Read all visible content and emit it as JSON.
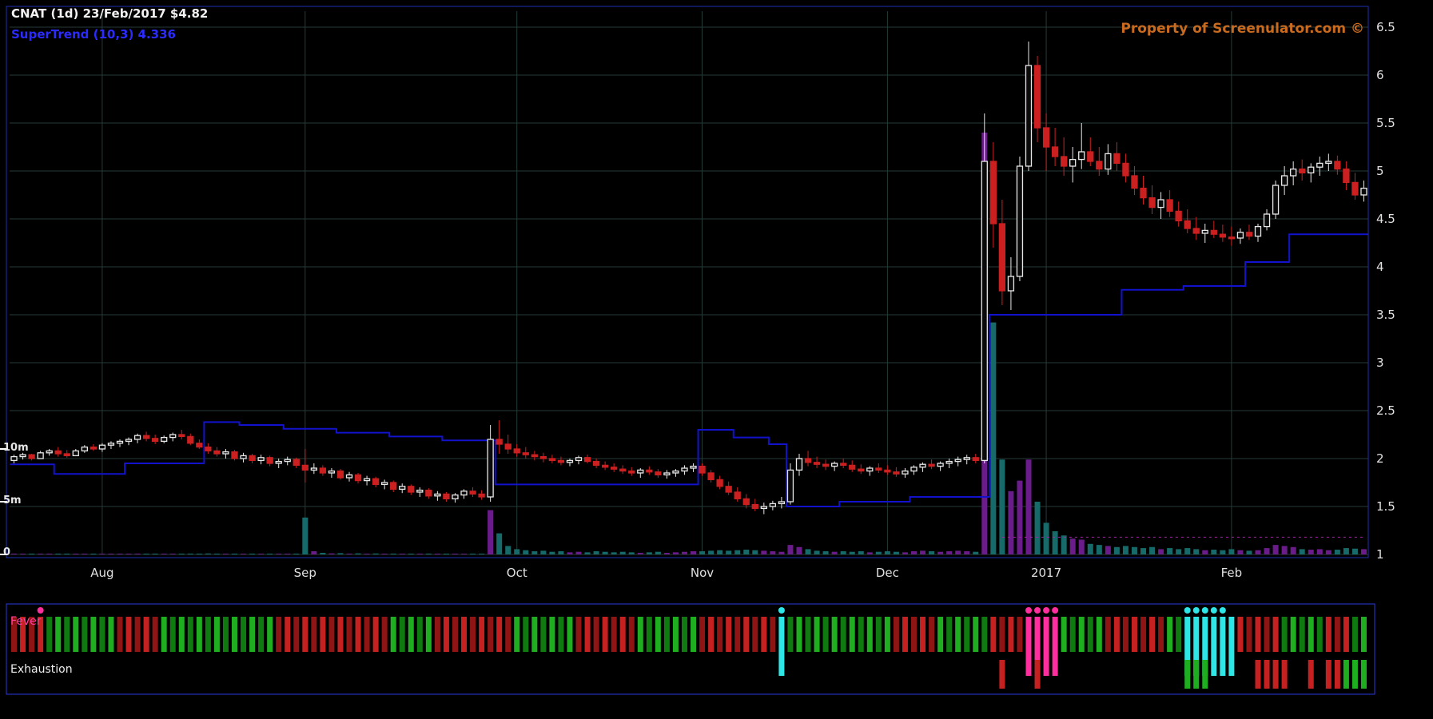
{
  "header": {
    "title": "CNAT (1d) 23/Feb/2017 $4.82",
    "indicator_label": "SuperTrend (10,3) 4.336",
    "watermark": "Property of Screenulator.com ©"
  },
  "colors": {
    "background": "#000000",
    "grid": "#263b37",
    "frame": "#2030b8",
    "panel_border": "#2a3adf",
    "candle_up": "#e8e8e8",
    "candle_down": "#cc2020",
    "supertrend": "#1212cc",
    "volume_up": "#6a1c8a",
    "volume_down": "#176a6a",
    "fever_green": "#1fae1f",
    "fever_green_dim": "#0f7a0f",
    "fever_red": "#c62121",
    "fever_red_dim": "#8f1414",
    "fever_pink": "#ff2e9e",
    "fever_cyan": "#2ee6e6",
    "axis_text": "#e0e0e0",
    "watermark_text": "#c96a1e",
    "overlay_dashed": "#aa22aa"
  },
  "chart_data": {
    "type": "candlestick",
    "title": "CNAT (1d) 23/Feb/2017 $4.82",
    "symbol": "CNAT",
    "timeframe": "1d",
    "date": "23/Feb/2017",
    "last_price": 4.82,
    "indicator": "SuperTrend (10,3)",
    "supertrend_value": 4.336,
    "ylim": [
      1,
      6.5
    ],
    "y_ticks": [
      6.5,
      6,
      5.5,
      5,
      4.5,
      4,
      3.5,
      3,
      2.5,
      2,
      1.5,
      1
    ],
    "x_tick_labels": [
      "Aug",
      "Sep",
      "Oct",
      "Nov",
      "Dec",
      "2017",
      "Feb"
    ],
    "x_tick_indices": [
      10,
      33,
      57,
      78,
      99,
      117,
      138
    ],
    "volume_axis": {
      "labels": [
        "10m",
        "5m",
        "0"
      ],
      "unit": "millions"
    },
    "candles": [
      [
        1.98,
        2.04,
        1.95,
        2.02,
        0.08
      ],
      [
        2.02,
        2.06,
        1.99,
        2.04,
        0.05
      ],
      [
        2.04,
        2.05,
        1.98,
        2.0,
        0.04
      ],
      [
        2.0,
        2.08,
        2.0,
        2.06,
        0.06
      ],
      [
        2.06,
        2.1,
        2.03,
        2.08,
        0.05
      ],
      [
        2.08,
        2.12,
        2.02,
        2.05,
        0.07
      ],
      [
        2.05,
        2.09,
        2.01,
        2.03,
        0.04
      ],
      [
        2.03,
        2.1,
        2.03,
        2.08,
        0.05
      ],
      [
        2.08,
        2.14,
        2.06,
        2.12,
        0.06
      ],
      [
        2.12,
        2.15,
        2.08,
        2.1,
        0.05
      ],
      [
        2.1,
        2.16,
        2.07,
        2.14,
        0.06
      ],
      [
        2.14,
        2.18,
        2.1,
        2.16,
        0.07
      ],
      [
        2.16,
        2.2,
        2.12,
        2.18,
        0.05
      ],
      [
        2.18,
        2.22,
        2.14,
        2.2,
        0.06
      ],
      [
        2.2,
        2.26,
        2.16,
        2.24,
        0.08
      ],
      [
        2.24,
        2.28,
        2.18,
        2.21,
        0.06
      ],
      [
        2.21,
        2.25,
        2.15,
        2.18,
        0.05
      ],
      [
        2.18,
        2.24,
        2.16,
        2.22,
        0.05
      ],
      [
        2.22,
        2.27,
        2.18,
        2.25,
        0.07
      ],
      [
        2.25,
        2.3,
        2.2,
        2.23,
        0.06
      ],
      [
        2.23,
        2.26,
        2.14,
        2.16,
        0.08
      ],
      [
        2.16,
        2.2,
        2.1,
        2.12,
        0.07
      ],
      [
        2.12,
        2.16,
        2.05,
        2.08,
        0.09
      ],
      [
        2.08,
        2.12,
        2.02,
        2.05,
        0.06
      ],
      [
        2.05,
        2.1,
        2.0,
        2.07,
        0.05
      ],
      [
        2.07,
        2.09,
        1.98,
        2.0,
        0.07
      ],
      [
        2.0,
        2.06,
        1.96,
        2.03,
        0.05
      ],
      [
        2.03,
        2.05,
        1.95,
        1.98,
        0.06
      ],
      [
        1.98,
        2.04,
        1.94,
        2.01,
        0.04
      ],
      [
        2.01,
        2.03,
        1.92,
        1.95,
        0.06
      ],
      [
        1.95,
        2.0,
        1.9,
        1.97,
        0.05
      ],
      [
        1.97,
        2.02,
        1.93,
        1.99,
        0.04
      ],
      [
        1.99,
        2.01,
        1.9,
        1.93,
        0.06
      ],
      [
        1.93,
        2.1,
        1.75,
        1.88,
        3.5
      ],
      [
        1.88,
        1.95,
        1.84,
        1.9,
        0.3
      ],
      [
        1.9,
        1.93,
        1.82,
        1.85,
        0.15
      ],
      [
        1.85,
        1.9,
        1.8,
        1.87,
        0.1
      ],
      [
        1.87,
        1.89,
        1.78,
        1.8,
        0.12
      ],
      [
        1.8,
        1.86,
        1.76,
        1.83,
        0.08
      ],
      [
        1.83,
        1.85,
        1.74,
        1.77,
        0.1
      ],
      [
        1.77,
        1.82,
        1.72,
        1.79,
        0.07
      ],
      [
        1.79,
        1.81,
        1.7,
        1.73,
        0.09
      ],
      [
        1.73,
        1.78,
        1.68,
        1.75,
        0.06
      ],
      [
        1.75,
        1.77,
        1.65,
        1.68,
        0.08
      ],
      [
        1.68,
        1.74,
        1.64,
        1.71,
        0.05
      ],
      [
        1.71,
        1.73,
        1.62,
        1.65,
        0.07
      ],
      [
        1.65,
        1.7,
        1.6,
        1.67,
        0.06
      ],
      [
        1.67,
        1.69,
        1.58,
        1.61,
        0.08
      ],
      [
        1.61,
        1.66,
        1.56,
        1.63,
        0.05
      ],
      [
        1.63,
        1.65,
        1.55,
        1.58,
        0.07
      ],
      [
        1.58,
        1.64,
        1.54,
        1.62,
        0.05
      ],
      [
        1.62,
        1.68,
        1.58,
        1.66,
        0.06
      ],
      [
        1.66,
        1.7,
        1.6,
        1.63,
        0.05
      ],
      [
        1.63,
        1.67,
        1.57,
        1.6,
        0.06
      ],
      [
        1.6,
        2.35,
        1.55,
        2.2,
        4.2
      ],
      [
        2.2,
        2.4,
        2.05,
        2.15,
        2.0
      ],
      [
        2.15,
        2.25,
        2.05,
        2.1,
        0.8
      ],
      [
        2.1,
        2.15,
        2.02,
        2.06,
        0.5
      ],
      [
        2.06,
        2.12,
        2.0,
        2.04,
        0.4
      ],
      [
        2.04,
        2.08,
        1.98,
        2.02,
        0.3
      ],
      [
        2.02,
        2.06,
        1.96,
        2.0,
        0.35
      ],
      [
        2.0,
        2.04,
        1.95,
        1.98,
        0.25
      ],
      [
        1.98,
        2.02,
        1.93,
        1.96,
        0.3
      ],
      [
        1.96,
        2.0,
        1.92,
        1.98,
        0.2
      ],
      [
        1.98,
        2.03,
        1.94,
        2.01,
        0.25
      ],
      [
        2.01,
        2.04,
        1.95,
        1.97,
        0.2
      ],
      [
        1.97,
        2.0,
        1.9,
        1.93,
        0.3
      ],
      [
        1.93,
        1.97,
        1.88,
        1.91,
        0.25
      ],
      [
        1.91,
        1.95,
        1.86,
        1.89,
        0.2
      ],
      [
        1.89,
        1.93,
        1.84,
        1.87,
        0.25
      ],
      [
        1.87,
        1.91,
        1.82,
        1.85,
        0.2
      ],
      [
        1.85,
        1.9,
        1.8,
        1.88,
        0.15
      ],
      [
        1.88,
        1.92,
        1.83,
        1.86,
        0.2
      ],
      [
        1.86,
        1.89,
        1.8,
        1.83,
        0.25
      ],
      [
        1.83,
        1.88,
        1.79,
        1.85,
        0.15
      ],
      [
        1.85,
        1.89,
        1.81,
        1.87,
        0.2
      ],
      [
        1.87,
        1.93,
        1.83,
        1.9,
        0.25
      ],
      [
        1.9,
        1.95,
        1.86,
        1.92,
        0.3
      ],
      [
        1.92,
        1.95,
        1.82,
        1.85,
        0.3
      ],
      [
        1.85,
        1.88,
        1.75,
        1.78,
        0.35
      ],
      [
        1.78,
        1.82,
        1.68,
        1.71,
        0.4
      ],
      [
        1.71,
        1.76,
        1.62,
        1.65,
        0.35
      ],
      [
        1.65,
        1.7,
        1.55,
        1.58,
        0.4
      ],
      [
        1.58,
        1.63,
        1.48,
        1.52,
        0.45
      ],
      [
        1.52,
        1.58,
        1.45,
        1.48,
        0.4
      ],
      [
        1.48,
        1.54,
        1.42,
        1.5,
        0.35
      ],
      [
        1.5,
        1.56,
        1.46,
        1.53,
        0.3
      ],
      [
        1.53,
        1.6,
        1.48,
        1.55,
        0.25
      ],
      [
        1.55,
        1.95,
        1.52,
        1.88,
        0.9
      ],
      [
        1.88,
        2.05,
        1.82,
        2.0,
        0.7
      ],
      [
        2.0,
        2.08,
        1.92,
        1.96,
        0.5
      ],
      [
        1.96,
        2.02,
        1.9,
        1.94,
        0.35
      ],
      [
        1.94,
        1.99,
        1.88,
        1.92,
        0.3
      ],
      [
        1.92,
        1.97,
        1.87,
        1.95,
        0.25
      ],
      [
        1.95,
        2.0,
        1.9,
        1.93,
        0.3
      ],
      [
        1.93,
        1.98,
        1.86,
        1.89,
        0.25
      ],
      [
        1.89,
        1.94,
        1.84,
        1.87,
        0.3
      ],
      [
        1.87,
        1.92,
        1.82,
        1.9,
        0.2
      ],
      [
        1.9,
        1.95,
        1.85,
        1.88,
        0.25
      ],
      [
        1.88,
        1.93,
        1.83,
        1.86,
        0.3
      ],
      [
        1.86,
        1.91,
        1.81,
        1.84,
        0.25
      ],
      [
        1.84,
        1.9,
        1.8,
        1.87,
        0.2
      ],
      [
        1.87,
        1.93,
        1.83,
        1.91,
        0.3
      ],
      [
        1.91,
        1.96,
        1.86,
        1.94,
        0.35
      ],
      [
        1.94,
        1.99,
        1.89,
        1.92,
        0.3
      ],
      [
        1.92,
        1.97,
        1.87,
        1.95,
        0.25
      ],
      [
        1.95,
        2.0,
        1.9,
        1.97,
        0.3
      ],
      [
        1.97,
        2.02,
        1.92,
        1.99,
        0.35
      ],
      [
        1.99,
        2.04,
        1.94,
        2.01,
        0.3
      ],
      [
        2.01,
        2.05,
        1.95,
        1.98,
        0.25
      ],
      [
        1.98,
        5.6,
        1.95,
        5.1,
        40.0
      ],
      [
        5.1,
        5.3,
        4.2,
        4.45,
        22.0
      ],
      [
        4.45,
        4.7,
        3.6,
        3.75,
        9.0
      ],
      [
        3.75,
        4.1,
        3.55,
        3.9,
        6.0
      ],
      [
        3.9,
        5.15,
        3.85,
        5.05,
        7.0
      ],
      [
        5.05,
        6.35,
        5.0,
        6.1,
        9.0
      ],
      [
        6.1,
        6.2,
        5.3,
        5.45,
        5.0
      ],
      [
        5.45,
        5.6,
        5.0,
        5.25,
        3.0
      ],
      [
        5.25,
        5.45,
        5.05,
        5.15,
        2.2
      ],
      [
        5.15,
        5.35,
        4.95,
        5.05,
        1.8
      ],
      [
        5.05,
        5.25,
        4.88,
        5.12,
        1.5
      ],
      [
        5.12,
        5.5,
        5.02,
        5.2,
        1.4
      ],
      [
        5.2,
        5.35,
        5.05,
        5.1,
        1.0
      ],
      [
        5.1,
        5.25,
        4.95,
        5.02,
        0.9
      ],
      [
        5.02,
        5.28,
        4.96,
        5.18,
        0.8
      ],
      [
        5.18,
        5.3,
        5.0,
        5.08,
        0.7
      ],
      [
        5.08,
        5.18,
        4.88,
        4.95,
        0.8
      ],
      [
        4.95,
        5.05,
        4.75,
        4.82,
        0.7
      ],
      [
        4.82,
        4.95,
        4.65,
        4.72,
        0.6
      ],
      [
        4.72,
        4.85,
        4.55,
        4.62,
        0.7
      ],
      [
        4.62,
        4.78,
        4.5,
        4.7,
        0.5
      ],
      [
        4.7,
        4.8,
        4.52,
        4.58,
        0.6
      ],
      [
        4.58,
        4.68,
        4.42,
        4.48,
        0.5
      ],
      [
        4.48,
        4.6,
        4.35,
        4.4,
        0.6
      ],
      [
        4.4,
        4.52,
        4.28,
        4.35,
        0.5
      ],
      [
        4.35,
        4.45,
        4.25,
        4.38,
        0.4
      ],
      [
        4.38,
        4.48,
        4.3,
        4.34,
        0.45
      ],
      [
        4.34,
        4.44,
        4.26,
        4.31,
        0.4
      ],
      [
        4.31,
        4.42,
        4.22,
        4.3,
        0.5
      ],
      [
        4.3,
        4.4,
        4.24,
        4.36,
        0.4
      ],
      [
        4.36,
        4.44,
        4.28,
        4.32,
        0.35
      ],
      [
        4.32,
        4.45,
        4.26,
        4.42,
        0.4
      ],
      [
        4.42,
        4.6,
        4.38,
        4.55,
        0.6
      ],
      [
        4.55,
        4.9,
        4.5,
        4.85,
        0.9
      ],
      [
        4.85,
        5.05,
        4.75,
        4.95,
        0.8
      ],
      [
        4.95,
        5.1,
        4.85,
        5.02,
        0.7
      ],
      [
        5.02,
        5.12,
        4.9,
        4.98,
        0.5
      ],
      [
        4.98,
        5.08,
        4.88,
        5.04,
        0.45
      ],
      [
        5.04,
        5.15,
        4.95,
        5.08,
        0.5
      ],
      [
        5.08,
        5.18,
        5.0,
        5.1,
        0.4
      ],
      [
        5.1,
        5.16,
        4.96,
        5.02,
        0.45
      ],
      [
        5.02,
        5.1,
        4.8,
        4.88,
        0.6
      ],
      [
        4.88,
        4.98,
        4.7,
        4.75,
        0.55
      ],
      [
        4.75,
        4.9,
        4.68,
        4.82,
        0.5
      ]
    ],
    "supertrend_segments": [
      [
        0,
        4,
        1.94
      ],
      [
        5,
        12,
        1.84
      ],
      [
        13,
        21,
        1.95
      ],
      [
        22,
        25,
        2.38
      ],
      [
        26,
        30,
        2.35
      ],
      [
        31,
        36,
        2.31
      ],
      [
        37,
        42,
        2.27
      ],
      [
        43,
        48,
        2.23
      ],
      [
        49,
        54,
        2.19
      ],
      [
        55,
        77,
        1.73
      ],
      [
        78,
        81,
        2.3
      ],
      [
        82,
        85,
        2.22
      ],
      [
        86,
        87,
        2.15
      ],
      [
        88,
        93,
        1.5
      ],
      [
        94,
        101,
        1.55
      ],
      [
        102,
        110,
        1.6
      ],
      [
        111,
        125,
        3.5
      ],
      [
        126,
        132,
        3.76
      ],
      [
        133,
        139,
        3.8
      ],
      [
        140,
        144,
        4.05
      ],
      [
        145,
        153,
        4.34
      ]
    ],
    "overlay_line": {
      "start_index": 112,
      "end_index": 153,
      "y_value": 1.18,
      "style": "dashed"
    },
    "panels": {
      "fever": {
        "label": "Fever",
        "bars": "rrrrggggggggrrrrrgggggggggggggrrrrrrrrrrrrrgggggrrrrrrrrrgggggggrrrrrrrgggggggrrrrrrrrrcggggggggggggrrrrrggggggrrrrppppgggggrrrrrrrggccccccrrrrrgggggrrrgg",
        "magenta_dots": [
          3,
          115,
          116,
          117,
          118
        ],
        "cyan_dots": [
          87,
          133,
          134,
          135,
          136,
          137
        ]
      },
      "exhaustion": {
        "label": "Exhaustion",
        "bars": {
          "112": "r",
          "116": "r",
          "133": "g",
          "134": "g",
          "135": "g",
          "141": "r",
          "142": "r",
          "143": "r",
          "144": "r",
          "147": "r",
          "149": "r",
          "150": "r",
          "151": "g",
          "152": "g",
          "153": "g"
        }
      }
    }
  }
}
